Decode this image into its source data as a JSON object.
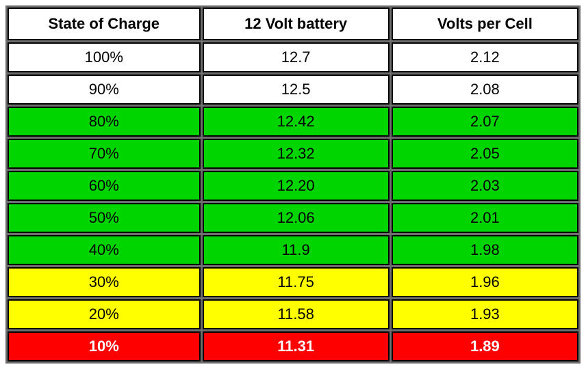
{
  "table": {
    "columns": [
      "State of Charge",
      "12 Volt battery",
      "Volts per Cell"
    ],
    "header_fontsize": 22,
    "header_fontweight": "bold",
    "cell_fontsize": 22,
    "border_color": "#000000",
    "spacing_color": "#6e6e6e",
    "colors": {
      "white": "#ffffff",
      "green": "#00d500",
      "yellow": "#ffff00",
      "red": "#ff0000",
      "red_text": "#ffffff"
    },
    "rows": [
      {
        "soc": "100%",
        "v12": "12.7",
        "vpc": "2.12",
        "bg": "white",
        "bold": false
      },
      {
        "soc": "90%",
        "v12": "12.5",
        "vpc": "2.08",
        "bg": "white",
        "bold": false
      },
      {
        "soc": "80%",
        "v12": "12.42",
        "vpc": "2.07",
        "bg": "green",
        "bold": false
      },
      {
        "soc": "70%",
        "v12": "12.32",
        "vpc": "2.05",
        "bg": "green",
        "bold": false
      },
      {
        "soc": "60%",
        "v12": "12.20",
        "vpc": "2.03",
        "bg": "green",
        "bold": false
      },
      {
        "soc": "50%",
        "v12": "12.06",
        "vpc": "2.01",
        "bg": "green",
        "bold": false
      },
      {
        "soc": "40%",
        "v12": "11.9",
        "vpc": "1.98",
        "bg": "green",
        "bold": false
      },
      {
        "soc": "30%",
        "v12": "11.75",
        "vpc": "1.96",
        "bg": "yellow",
        "bold": false
      },
      {
        "soc": "20%",
        "v12": "11.58",
        "vpc": "1.93",
        "bg": "yellow",
        "bold": false
      },
      {
        "soc": "10%",
        "v12": "11.31",
        "vpc": "1.89",
        "bg": "red",
        "bold": true
      }
    ]
  }
}
